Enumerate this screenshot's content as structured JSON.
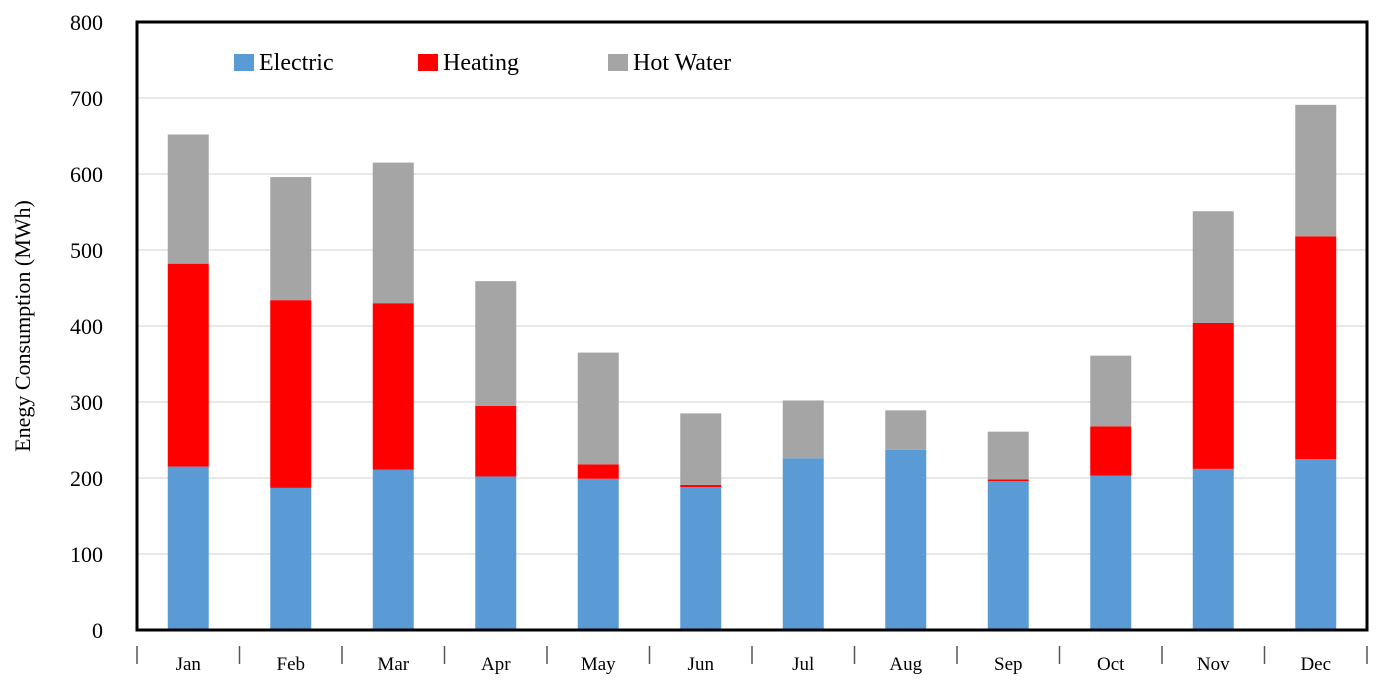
{
  "chart_data": {
    "type": "bar",
    "stacked": true,
    "title": "",
    "xlabel": "",
    "ylabel": "Enegy Consumption (MWh)",
    "ylim": [
      0,
      800
    ],
    "yticks": [
      0,
      100,
      200,
      300,
      400,
      500,
      600,
      700,
      800
    ],
    "yticks_labels": [
      "0",
      "100",
      "200",
      "300",
      "400",
      "500",
      "600",
      "700",
      "800"
    ],
    "grid": "horizontal",
    "legend_position": "top-left, inside plot, horizontal",
    "categories": [
      "Jan",
      "Feb",
      "Mar",
      "Apr",
      "May",
      "Jun",
      "Jul",
      "Aug",
      "Sep",
      "Oct",
      "Nov",
      "Dec"
    ],
    "series": [
      {
        "name": "Electric",
        "color": "#5b9bd5",
        "values": [
          215,
          187,
          211,
          202,
          199,
          188,
          226,
          237,
          196,
          203,
          212,
          225
        ]
      },
      {
        "name": "Heating",
        "color": "#ff0000",
        "values": [
          267,
          247,
          219,
          93,
          19,
          3,
          0,
          0,
          2,
          65,
          192,
          293
        ]
      },
      {
        "name": "Hot Water",
        "color": "#a5a5a5",
        "values": [
          170,
          162,
          185,
          164,
          147,
          94,
          76,
          52,
          63,
          93,
          147,
          173
        ]
      }
    ]
  }
}
